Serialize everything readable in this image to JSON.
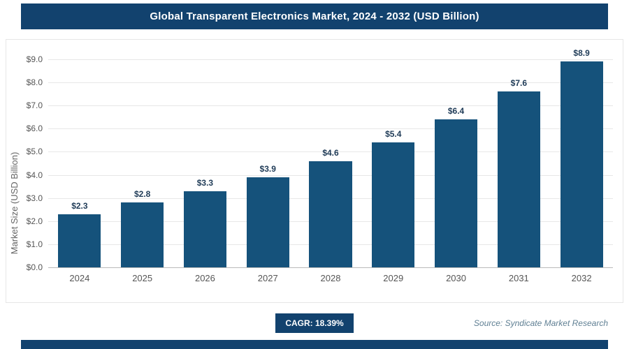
{
  "header": {
    "title": "Global Transparent Electronics Market, 2024 - 2032 (USD Billion)"
  },
  "chart_data": {
    "type": "bar",
    "categories": [
      "2024",
      "2025",
      "2026",
      "2027",
      "2028",
      "2029",
      "2030",
      "2031",
      "2032"
    ],
    "values": [
      2.3,
      2.8,
      3.3,
      3.9,
      4.6,
      5.4,
      6.4,
      7.6,
      8.9
    ],
    "value_labels": [
      "$2.3",
      "$2.8",
      "$3.3",
      "$3.9",
      "$4.6",
      "$5.4",
      "$6.4",
      "$7.6",
      "$8.9"
    ],
    "title": "Global Transparent Electronics Market, 2024 - 2032 (USD Billion)",
    "xlabel": "",
    "ylabel": "Market Size (USD Billion)",
    "ylim": [
      0,
      9
    ],
    "ytick_step": 1,
    "ytick_labels": [
      "$0.0",
      "$1.0",
      "$2.0",
      "$3.0",
      "$4.0",
      "$5.0",
      "$6.0",
      "$7.0",
      "$8.0",
      "$9.0"
    ],
    "grid": true,
    "legend": "none",
    "bar_color": "#15527b"
  },
  "footer": {
    "cagr_label": "CAGR: 18.39%",
    "source": "Source: Syndicate Market Research"
  },
  "colors": {
    "accent": "#12426e",
    "bar": "#15527b",
    "gridline": "#e7e7e7",
    "axis_text": "#555555",
    "source_text": "#5f7f93"
  }
}
